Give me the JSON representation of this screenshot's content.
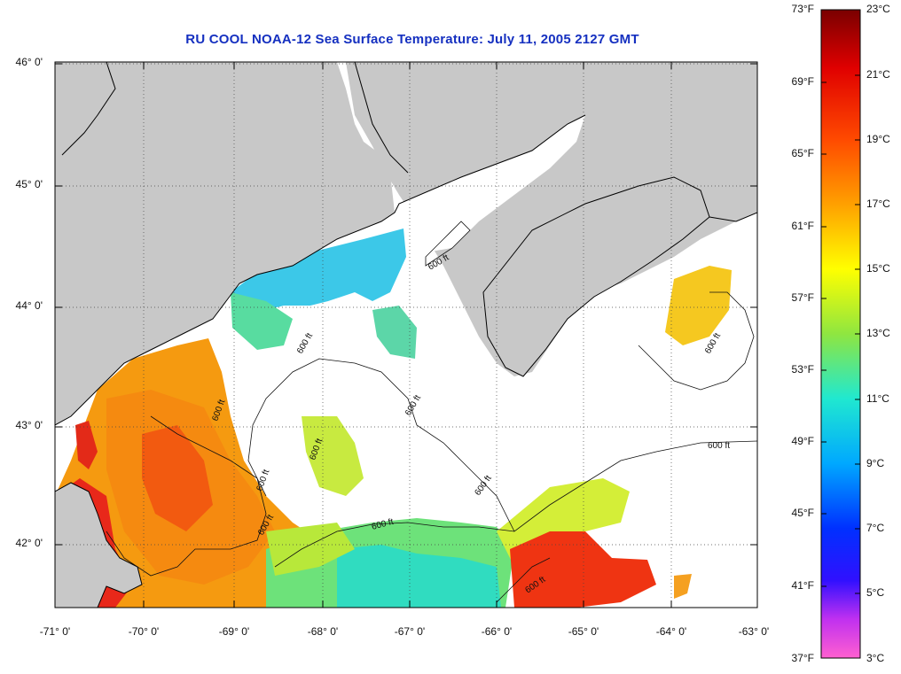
{
  "title": "RU COOL  NOAA-12  Sea Surface Temperature:  July 11, 2005 2127 GMT",
  "map": {
    "lat_labels": [
      "46° 0'",
      "45° 0'",
      "44° 0'",
      "43° 0'",
      "42° 0'"
    ],
    "lon_labels": [
      "-71° 0'",
      "-70° 0'",
      "-69° 0'",
      "-68° 0'",
      "-67° 0'",
      "-66° 0'",
      "-65° 0'",
      "-64° 0'",
      "-63° 0'"
    ],
    "contour_label": "600 ft",
    "colors": {
      "land": "#c8c8c8",
      "cloud": "#ffffff",
      "coast": "#000000",
      "grid": "#444444"
    }
  },
  "colorbar": {
    "fahrenheit": [
      "73°F",
      "69°F",
      "65°F",
      "61°F",
      "57°F",
      "53°F",
      "49°F",
      "45°F",
      "41°F",
      "37°F"
    ],
    "celsius": [
      "23°C",
      "21°C",
      "19°C",
      "17°C",
      "15°C",
      "13°C",
      "11°C",
      "9°C",
      "7°C",
      "5°C",
      "3°C"
    ]
  }
}
